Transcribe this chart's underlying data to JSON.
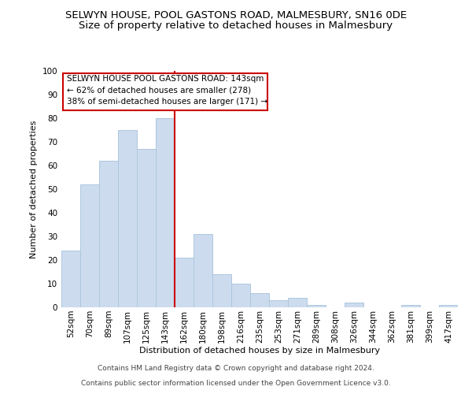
{
  "title1": "SELWYN HOUSE, POOL GASTONS ROAD, MALMESBURY, SN16 0DE",
  "title2": "Size of property relative to detached houses in Malmesbury",
  "xlabel": "Distribution of detached houses by size in Malmesbury",
  "ylabel": "Number of detached properties",
  "categories": [
    "52sqm",
    "70sqm",
    "89sqm",
    "107sqm",
    "125sqm",
    "143sqm",
    "162sqm",
    "180sqm",
    "198sqm",
    "216sqm",
    "235sqm",
    "253sqm",
    "271sqm",
    "289sqm",
    "308sqm",
    "326sqm",
    "344sqm",
    "362sqm",
    "381sqm",
    "399sqm",
    "417sqm"
  ],
  "values": [
    24,
    52,
    62,
    75,
    67,
    80,
    21,
    31,
    14,
    10,
    6,
    3,
    4,
    1,
    0,
    2,
    0,
    0,
    1,
    0,
    1
  ],
  "bar_color": "#ccdcee",
  "bar_edge_color": "#aec6de",
  "red_line_index": 5,
  "ylim": [
    0,
    100
  ],
  "yticks": [
    0,
    10,
    20,
    30,
    40,
    50,
    60,
    70,
    80,
    90,
    100
  ],
  "annotation_title": "SELWYN HOUSE POOL GASTONS ROAD: 143sqm",
  "annotation_line1": "← 62% of detached houses are smaller (278)",
  "annotation_line2": "38% of semi-detached houses are larger (171) →",
  "footer1": "Contains HM Land Registry data © Crown copyright and database right 2024.",
  "footer2": "Contains public sector information licensed under the Open Government Licence v3.0.",
  "background_color": "#ffffff",
  "annotation_box_color": "#ffffff",
  "annotation_box_edge": "#cc0000",
  "red_line_color": "#cc0000",
  "title1_fontsize": 9.5,
  "title2_fontsize": 9.5,
  "axis_fontsize": 8,
  "tick_fontsize": 7.5,
  "footer_fontsize": 6.5
}
